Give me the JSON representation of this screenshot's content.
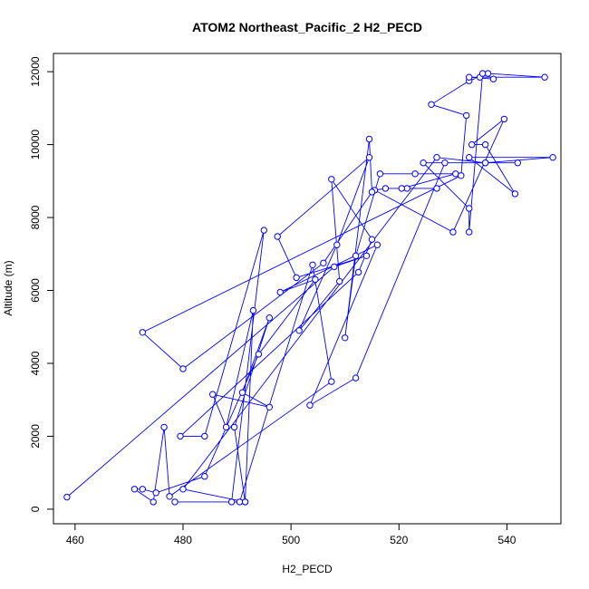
{
  "chart_data": {
    "type": "line",
    "title": "ATOM2 Northeast_Pacific_2 H2_PECD",
    "xlabel": "H2_PECD",
    "ylabel": "Altitude (m)",
    "xlim": [
      456,
      550
    ],
    "ylim": [
      -400,
      12500
    ],
    "xticks": [
      460,
      480,
      500,
      520,
      540
    ],
    "yticks": [
      0,
      2000,
      4000,
      6000,
      8000,
      10000,
      12000
    ],
    "grid": false,
    "series_color": "#0000ff",
    "marker": "open-circle",
    "points": [
      [
        458.5,
        330
      ],
      [
        508.0,
        6650
      ],
      [
        514.0,
        6950
      ],
      [
        501.0,
        6350
      ],
      [
        497.5,
        7480
      ],
      [
        514.5,
        9650
      ],
      [
        508.5,
        7250
      ],
      [
        501.5,
        4900
      ],
      [
        509.0,
        6250
      ],
      [
        507.5,
        9050
      ],
      [
        515.0,
        7400
      ],
      [
        512.5,
        6500
      ],
      [
        479.5,
        2000
      ],
      [
        484.0,
        2000
      ],
      [
        495.0,
        7650
      ],
      [
        489.0,
        200
      ],
      [
        478.5,
        200
      ],
      [
        491.5,
        200
      ],
      [
        493.0,
        5450
      ],
      [
        488.0,
        2250
      ],
      [
        485.5,
        3150
      ],
      [
        496.0,
        2800
      ],
      [
        491.0,
        3200
      ],
      [
        496.0,
        5250
      ],
      [
        489.5,
        2250
      ],
      [
        491.5,
        200
      ],
      [
        480.0,
        550
      ],
      [
        527.0,
        9650
      ],
      [
        536.0,
        9500
      ],
      [
        548.5,
        9650
      ],
      [
        533.0,
        9650
      ],
      [
        541.5,
        8650
      ],
      [
        536.0,
        10000
      ],
      [
        533.5,
        10000
      ],
      [
        539.5,
        10700
      ],
      [
        530.0,
        7600
      ],
      [
        515.5,
        8750
      ],
      [
        517.5,
        8800
      ],
      [
        521.5,
        8800
      ],
      [
        527.0,
        8800
      ],
      [
        520.5,
        8800
      ],
      [
        530.5,
        9200
      ],
      [
        523.0,
        9200
      ],
      [
        516.5,
        9200
      ],
      [
        512.0,
        6950
      ],
      [
        510.0,
        4700
      ],
      [
        514.5,
        10150
      ],
      [
        515.0,
        8700
      ],
      [
        506.0,
        6750
      ],
      [
        480.0,
        3850
      ],
      [
        472.5,
        4850
      ],
      [
        531.5,
        9150
      ],
      [
        532.5,
        10800
      ],
      [
        526.0,
        11100
      ],
      [
        533.0,
        11750
      ],
      [
        536.5,
        11950
      ],
      [
        547.0,
        11850
      ],
      [
        535.0,
        11850
      ],
      [
        533.0,
        11850
      ],
      [
        537.5,
        11800
      ],
      [
        535.5,
        11950
      ],
      [
        533.0,
        7600
      ],
      [
        533.0,
        8250
      ],
      [
        524.5,
        9500
      ],
      [
        542.0,
        9500
      ],
      [
        536.0,
        9500
      ],
      [
        528.5,
        9500
      ],
      [
        512.0,
        3600
      ],
      [
        503.5,
        2850
      ],
      [
        516.0,
        7250
      ],
      [
        498.0,
        5950
      ],
      [
        504.5,
        6300
      ],
      [
        494.0,
        4250
      ],
      [
        484.0,
        900
      ],
      [
        475.0,
        450
      ],
      [
        472.5,
        550
      ],
      [
        471.0,
        550
      ],
      [
        474.5,
        200
      ],
      [
        476.5,
        2250
      ],
      [
        477.5,
        350
      ],
      [
        507.5,
        3500
      ],
      [
        504.0,
        6700
      ],
      [
        490.5,
        200
      ]
    ]
  }
}
